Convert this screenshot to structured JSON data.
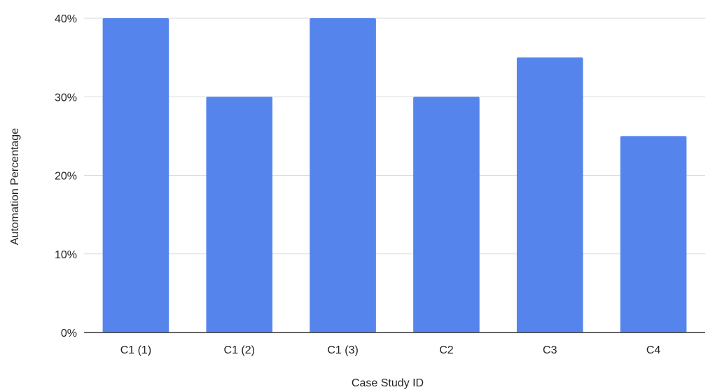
{
  "chart_data": {
    "type": "bar",
    "title": "",
    "xlabel": "Case Study ID",
    "ylabel": "Automation Percentage",
    "categories": [
      "C1 (1)",
      "C1 (2)",
      "C1 (3)",
      "C2",
      "C3",
      "C4"
    ],
    "values": [
      40,
      30,
      40,
      30,
      35,
      25
    ],
    "ylim": [
      0,
      40
    ],
    "yticks": [
      0,
      10,
      20,
      30,
      40
    ],
    "ytick_labels": [
      "0%",
      "10%",
      "20%",
      "30%",
      "40%"
    ],
    "grid": true,
    "legend": "none",
    "bar_color": "#5585EC"
  }
}
